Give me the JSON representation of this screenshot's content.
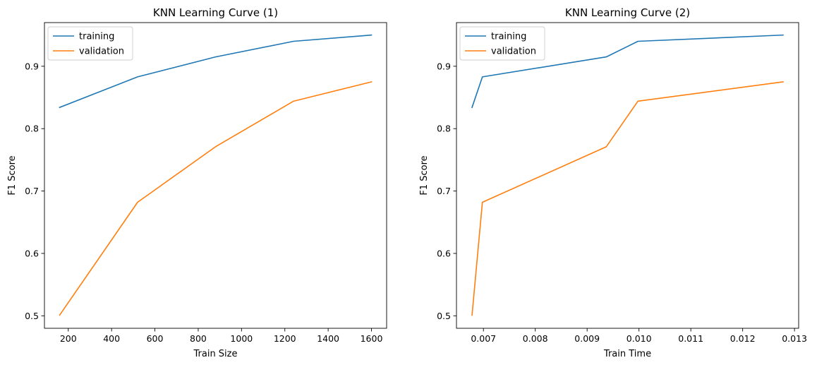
{
  "chart_data": [
    {
      "type": "line",
      "title": "KNN Learning Curve (1)",
      "xlabel": "Train Size",
      "ylabel": "F1 Score",
      "xlim": [
        90,
        1670
      ],
      "ylim": [
        0.48,
        0.97
      ],
      "xticks": [
        200,
        400,
        600,
        800,
        1000,
        1200,
        1400,
        1600
      ],
      "xtick_labels": [
        "200",
        "400",
        "600",
        "800",
        "1000",
        "1200",
        "1400",
        "1600"
      ],
      "yticks": [
        0.5,
        0.6,
        0.7,
        0.8,
        0.9
      ],
      "ytick_labels": [
        "0.5",
        "0.6",
        "0.7",
        "0.8",
        "0.9"
      ],
      "grid": false,
      "legend_position": "top-left",
      "series": [
        {
          "name": "training",
          "color": "#1f77b4",
          "x": [
            160,
            520,
            880,
            1240,
            1600
          ],
          "y": [
            0.834,
            0.883,
            0.915,
            0.94,
            0.95
          ]
        },
        {
          "name": "validation",
          "color": "#ff7f0e",
          "x": [
            160,
            520,
            880,
            1240,
            1600
          ],
          "y": [
            0.501,
            0.682,
            0.771,
            0.844,
            0.875
          ]
        }
      ]
    },
    {
      "type": "line",
      "title": "KNN Learning Curve (2)",
      "xlabel": "Train Time",
      "ylabel": "F1 Score",
      "xlim": [
        0.00648,
        0.01308
      ],
      "ylim": [
        0.48,
        0.97
      ],
      "xticks": [
        0.007,
        0.008,
        0.009,
        0.01,
        0.011,
        0.012,
        0.013
      ],
      "xtick_labels": [
        "0.007",
        "0.008",
        "0.009",
        "0.010",
        "0.011",
        "0.012",
        "0.013"
      ],
      "yticks": [
        0.5,
        0.6,
        0.7,
        0.8,
        0.9
      ],
      "ytick_labels": [
        "0.5",
        "0.6",
        "0.7",
        "0.8",
        "0.9"
      ],
      "grid": false,
      "legend_position": "top-left",
      "series": [
        {
          "name": "training",
          "color": "#1f77b4",
          "x": [
            0.00678,
            0.00698,
            0.00937,
            0.00998,
            0.01278
          ],
          "y": [
            0.834,
            0.883,
            0.915,
            0.94,
            0.95
          ]
        },
        {
          "name": "validation",
          "color": "#ff7f0e",
          "x": [
            0.00678,
            0.00698,
            0.00937,
            0.00998,
            0.01278
          ],
          "y": [
            0.501,
            0.682,
            0.771,
            0.844,
            0.875
          ]
        }
      ]
    }
  ]
}
